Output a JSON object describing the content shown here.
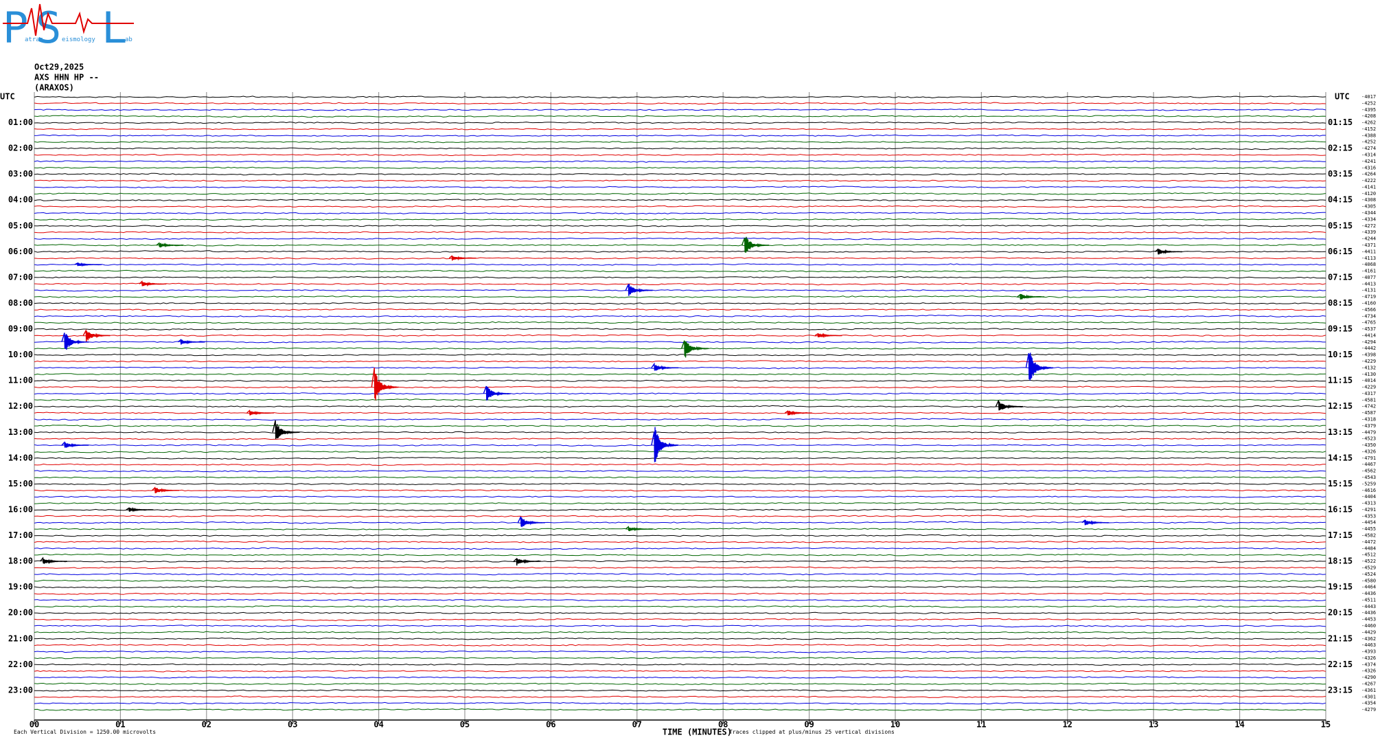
{
  "logo": {
    "letters": [
      "P",
      "S",
      "L"
    ],
    "words": [
      "atras",
      "eismology",
      "ab"
    ]
  },
  "header": {
    "date": "Oct29,2025",
    "station": "AXS HHN HP --",
    "location": "(ARAXOS)"
  },
  "helicorder": {
    "utc_left": "UTC",
    "utc_right": "UTC",
    "left_labels": [
      "01:00",
      "02:00",
      "03:00",
      "04:00",
      "05:00",
      "06:00",
      "07:00",
      "08:00",
      "09:00",
      "10:00",
      "11:00",
      "12:00",
      "13:00",
      "14:00",
      "15:00",
      "16:00",
      "17:00",
      "18:00",
      "19:00",
      "20:00",
      "21:00",
      "22:00",
      "23:00"
    ],
    "right_labels": [
      "01:15",
      "02:15",
      "03:15",
      "04:15",
      "05:15",
      "06:15",
      "07:15",
      "08:15",
      "09:15",
      "10:15",
      "11:15",
      "12:15",
      "13:15",
      "14:15",
      "15:15",
      "16:15",
      "17:15",
      "18:15",
      "19:15",
      "20:15",
      "21:15",
      "22:15",
      "23:15"
    ],
    "xlim": [
      0,
      15
    ],
    "xticks": [
      {
        "value": 0,
        "label": "00"
      },
      {
        "value": 1,
        "label": "01"
      },
      {
        "value": 2,
        "label": "02"
      },
      {
        "value": 3,
        "label": "03"
      },
      {
        "value": 4,
        "label": "04"
      },
      {
        "value": 5,
        "label": "05"
      },
      {
        "value": 6,
        "label": "06"
      },
      {
        "value": 7,
        "label": "07"
      },
      {
        "value": 8,
        "label": "08"
      },
      {
        "value": 9,
        "label": "09"
      },
      {
        "value": 10,
        "label": "10"
      },
      {
        "value": 11,
        "label": "11"
      },
      {
        "value": 12,
        "label": "12"
      },
      {
        "value": 13,
        "label": "13"
      },
      {
        "value": 14,
        "label": "14"
      },
      {
        "value": 15,
        "label": "15"
      }
    ],
    "x_label": "TIME (MINUTES)",
    "footer_left": "Each Vertical Division = 1250.00 microvolts",
    "footer_right": "Traces clipped at plus/minus 25 vertical divisions",
    "trace_colors": [
      "#000000",
      "#e00000",
      "#0000e0",
      "#006400"
    ],
    "trace_offsets": [
      -4017,
      -4252,
      -4395,
      -4208,
      -4262,
      -4152,
      -4388,
      -4252,
      -4274,
      -4314,
      -4241,
      -4316,
      -4264,
      -4222,
      -4141,
      -4120,
      -4308,
      -4305,
      -4344,
      -4334,
      -4272,
      -4339,
      -4244,
      -4371,
      -4411,
      -4113,
      -4068,
      -4161,
      -4077,
      -4413,
      -4131,
      -4719,
      -4160,
      -4566,
      -4734,
      -4765,
      -4537,
      -4414,
      -4294,
      -4442,
      -4398,
      -4229,
      -4132,
      -4130,
      -4014,
      -4229,
      -4317,
      -4581,
      -4742,
      -4587,
      -4318,
      -4379,
      -4479,
      -4523,
      -4350,
      -4326,
      -4791,
      -4467,
      -4562,
      -4543,
      -5259,
      -4616,
      -4404,
      -4313,
      -4291,
      -4353,
      -4454,
      -4455,
      -4582,
      -4472,
      -4484,
      -4512,
      -4522,
      -4529,
      -4524,
      -4580,
      -4464,
      -4436,
      -4511,
      -4443,
      -4436,
      -4453,
      -4460,
      -4429,
      -4362,
      -4463,
      -4393,
      -4326,
      -4374,
      -4326,
      -4290,
      -4267,
      -4361,
      -4301,
      -4354,
      -4279
    ],
    "events": [
      {
        "trace": 23,
        "minute": 1.45,
        "amplitude": 4
      },
      {
        "trace": 23,
        "minute": 8.25,
        "amplitude": 16
      },
      {
        "trace": 24,
        "minute": 13.05,
        "amplitude": 5
      },
      {
        "trace": 25,
        "minute": 4.85,
        "amplitude": 4
      },
      {
        "trace": 26,
        "minute": 0.5,
        "amplitude": 3
      },
      {
        "trace": 29,
        "minute": 1.25,
        "amplitude": 4
      },
      {
        "trace": 30,
        "minute": 6.9,
        "amplitude": 10
      },
      {
        "trace": 31,
        "minute": 11.45,
        "amplitude": 5
      },
      {
        "trace": 37,
        "minute": 0.6,
        "amplitude": 10
      },
      {
        "trace": 37,
        "minute": 9.1,
        "amplitude": 4
      },
      {
        "trace": 38,
        "minute": 0.35,
        "amplitude": 16
      },
      {
        "trace": 38,
        "minute": 1.7,
        "amplitude": 4
      },
      {
        "trace": 39,
        "minute": 7.55,
        "amplitude": 16
      },
      {
        "trace": 42,
        "minute": 7.2,
        "amplitude": 6
      },
      {
        "trace": 42,
        "minute": 11.55,
        "amplitude": 28
      },
      {
        "trace": 45,
        "minute": 3.95,
        "amplitude": 26
      },
      {
        "trace": 46,
        "minute": 5.25,
        "amplitude": 12
      },
      {
        "trace": 48,
        "minute": 11.2,
        "amplitude": 9
      },
      {
        "trace": 49,
        "minute": 2.5,
        "amplitude": 4
      },
      {
        "trace": 49,
        "minute": 8.75,
        "amplitude": 4
      },
      {
        "trace": 52,
        "minute": 2.8,
        "amplitude": 16
      },
      {
        "trace": 54,
        "minute": 0.35,
        "amplitude": 5
      },
      {
        "trace": 54,
        "minute": 7.2,
        "amplitude": 30
      },
      {
        "trace": 61,
        "minute": 1.4,
        "amplitude": 5
      },
      {
        "trace": 64,
        "minute": 1.1,
        "amplitude": 3
      },
      {
        "trace": 66,
        "minute": 5.65,
        "amplitude": 9
      },
      {
        "trace": 66,
        "minute": 12.2,
        "amplitude": 5
      },
      {
        "trace": 67,
        "minute": 6.9,
        "amplitude": 4
      },
      {
        "trace": 72,
        "minute": 0.1,
        "amplitude": 5
      },
      {
        "trace": 72,
        "minute": 5.6,
        "amplitude": 6
      }
    ]
  }
}
